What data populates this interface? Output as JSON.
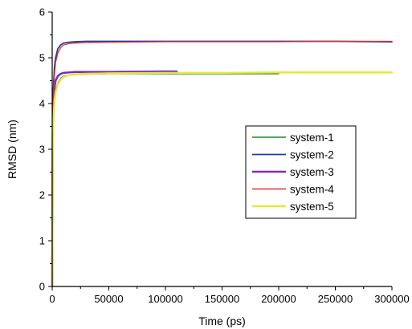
{
  "chart_data": {
    "type": "line",
    "title": "",
    "xlabel": "Time (ps)",
    "ylabel": "RMSD (nm)",
    "xlim": [
      0,
      300000
    ],
    "ylim": [
      0,
      6
    ],
    "x_ticks": [
      0,
      50000,
      100000,
      150000,
      200000,
      250000,
      300000
    ],
    "x_tick_labels": [
      "0",
      "50000",
      "100000",
      "150000",
      "200000",
      "250000",
      "300000"
    ],
    "y_ticks": [
      0,
      1,
      2,
      3,
      4,
      5,
      6
    ],
    "y_tick_labels": [
      "0",
      "1",
      "2",
      "3",
      "4",
      "5",
      "6"
    ],
    "grid": false,
    "legend_position": "right",
    "series": [
      {
        "name": "system-1",
        "color": "#1f8a2e",
        "width": 1.4,
        "x": [
          0,
          500,
          1000,
          2000,
          3000,
          5000,
          7500,
          10000,
          15000,
          20000,
          30000,
          50000,
          100000,
          150000,
          200000
        ],
        "y": [
          0,
          3.0,
          3.7,
          4.1,
          4.3,
          4.45,
          4.55,
          4.6,
          4.62,
          4.63,
          4.64,
          4.65,
          4.65,
          4.65,
          4.65
        ]
      },
      {
        "name": "system-2",
        "color": "#27399e",
        "width": 1.8,
        "x": [
          0,
          500,
          1000,
          2000,
          3000,
          5000,
          7500,
          10000,
          15000,
          20000,
          30000,
          50000,
          100000,
          150000,
          200000,
          250000,
          300000
        ],
        "y": [
          0,
          3.6,
          4.3,
          4.8,
          5.0,
          5.2,
          5.28,
          5.32,
          5.34,
          5.35,
          5.36,
          5.36,
          5.36,
          5.36,
          5.36,
          5.36,
          5.35
        ]
      },
      {
        "name": "system-3",
        "color": "#7b2fbe",
        "width": 2.6,
        "x": [
          0,
          500,
          1000,
          2000,
          3000,
          5000,
          7500,
          10000,
          15000,
          20000,
          30000,
          50000,
          100000,
          110000
        ],
        "y": [
          0,
          3.3,
          4.0,
          4.35,
          4.5,
          4.6,
          4.65,
          4.67,
          4.68,
          4.69,
          4.69,
          4.69,
          4.7,
          4.7
        ]
      },
      {
        "name": "system-4",
        "color": "#e0312b",
        "width": 1.2,
        "x": [
          0,
          500,
          1000,
          2000,
          3000,
          5000,
          7500,
          10000,
          15000,
          20000,
          30000,
          50000,
          100000,
          150000,
          200000,
          250000,
          300000
        ],
        "y": [
          0,
          3.4,
          4.1,
          4.6,
          4.9,
          5.1,
          5.22,
          5.28,
          5.31,
          5.32,
          5.33,
          5.34,
          5.35,
          5.35,
          5.35,
          5.36,
          5.36
        ]
      },
      {
        "name": "system-5",
        "color": "#e6e63c",
        "width": 2.4,
        "x": [
          0,
          500,
          1000,
          2000,
          3000,
          5000,
          7500,
          10000,
          15000,
          20000,
          30000,
          50000,
          100000,
          150000,
          200000,
          250000,
          300000
        ],
        "y": [
          0,
          2.9,
          3.6,
          4.05,
          4.25,
          4.42,
          4.52,
          4.58,
          4.62,
          4.64,
          4.65,
          4.66,
          4.67,
          4.67,
          4.68,
          4.68,
          4.68
        ]
      }
    ]
  }
}
